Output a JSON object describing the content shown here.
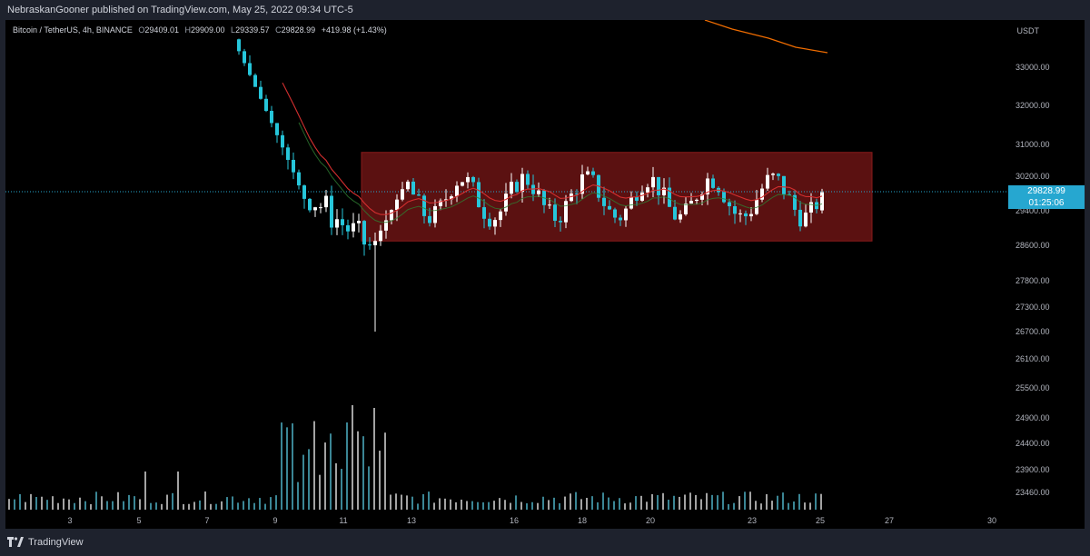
{
  "header": {
    "publisher_line": "NebraskanGooner published on TradingView.com, May 25, 2022 09:34 UTC-5"
  },
  "legend": {
    "symbol": "Bitcoin / TetherUS, 4h, BINANCE",
    "o_label": "O",
    "o_value": "29409.01",
    "h_label": "H",
    "h_value": "29909.00",
    "l_label": "L",
    "l_value": "29339.57",
    "c_label": "C",
    "c_value": "29828.99",
    "change": "+419.98 (+1.43%)"
  },
  "price_axis": {
    "unit": "USDT",
    "labels": [
      "33000.00",
      "32000.00",
      "31000.00",
      "30200.00",
      "29400.00",
      "28600.00",
      "27800.00",
      "27300.00",
      "26700.00",
      "26100.00",
      "25500.00",
      "24900.00",
      "24400.00",
      "23900.00",
      "23460.00"
    ],
    "current_price": "29828.99",
    "countdown": "01:25:06"
  },
  "time_axis": {
    "labels": [
      "3",
      "5",
      "7",
      "9",
      "11",
      "13",
      "16",
      "18",
      "20",
      "23",
      "25",
      "27",
      "30"
    ]
  },
  "footer": {
    "brand": "TradingView"
  },
  "colors": {
    "background": "#000000",
    "up_candle": "#ffffff",
    "down_candle": "#26c6da",
    "range_box": "#6b1414",
    "ma_red": "#d32f2f",
    "ma_green": "#2e7d32",
    "ma_orange": "#ef6c00",
    "price_tag": "#26a7d0"
  },
  "chart_data": {
    "type": "candlestick",
    "symbol": "Bitcoin / TetherUS",
    "timeframe": "4h",
    "exchange": "BINANCE",
    "last_candle": {
      "open": 29409.01,
      "high": 29909.0,
      "low": 29339.57,
      "close": 29828.99
    },
    "consolidation_range": {
      "low": 28700,
      "high": 30800,
      "from_day": 12,
      "to_day": 26
    },
    "period_low": 26700,
    "start_price_top": 33500
  }
}
